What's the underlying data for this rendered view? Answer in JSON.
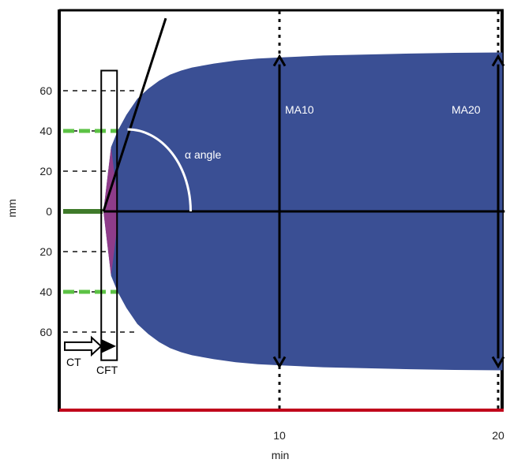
{
  "chart_data": {
    "type": "area",
    "title": "",
    "xlabel": "min",
    "ylabel": "mm",
    "x_ticks": [
      {
        "value": 10,
        "label": "10"
      },
      {
        "value": 20,
        "label": "20"
      }
    ],
    "y_ticks": [
      {
        "value": 60,
        "label": "60"
      },
      {
        "value": 40,
        "label": "40"
      },
      {
        "value": 20,
        "label": "20"
      },
      {
        "value": 0,
        "label": "0"
      },
      {
        "value": -20,
        "label": "20"
      },
      {
        "value": -40,
        "label": "40"
      },
      {
        "value": -60,
        "label": "60"
      }
    ],
    "xlim": [
      0,
      20.2
    ],
    "ylim": [
      -100,
      78
    ],
    "grid": "dashed lines at y ticks, dotted verticals at x ticks",
    "series": [
      {
        "color": "#3a4f94",
        "x": [
          1.95,
          2.3,
          2.6,
          3.0,
          3.5,
          4.0,
          4.5,
          5,
          5.5,
          6,
          7,
          8,
          9,
          10,
          12,
          14,
          16,
          18,
          20.2
        ],
        "y": [
          0,
          32,
          40,
          48,
          56,
          61,
          65,
          68,
          70,
          71.5,
          73.5,
          75,
          76,
          76.5,
          77.5,
          78,
          78.5,
          78.8,
          79
        ]
      }
    ],
    "annotations": {
      "angle_label": "α angle",
      "ma10_label": "MA10",
      "ma20_label": "MA20",
      "ct_label": "CT",
      "cft_label": "CFT"
    },
    "colors": {
      "fill": "#3a4f94",
      "initial_fill": "#8e3c8a",
      "green_marks": "#5cc244",
      "axis_red": "#c0001a"
    }
  }
}
